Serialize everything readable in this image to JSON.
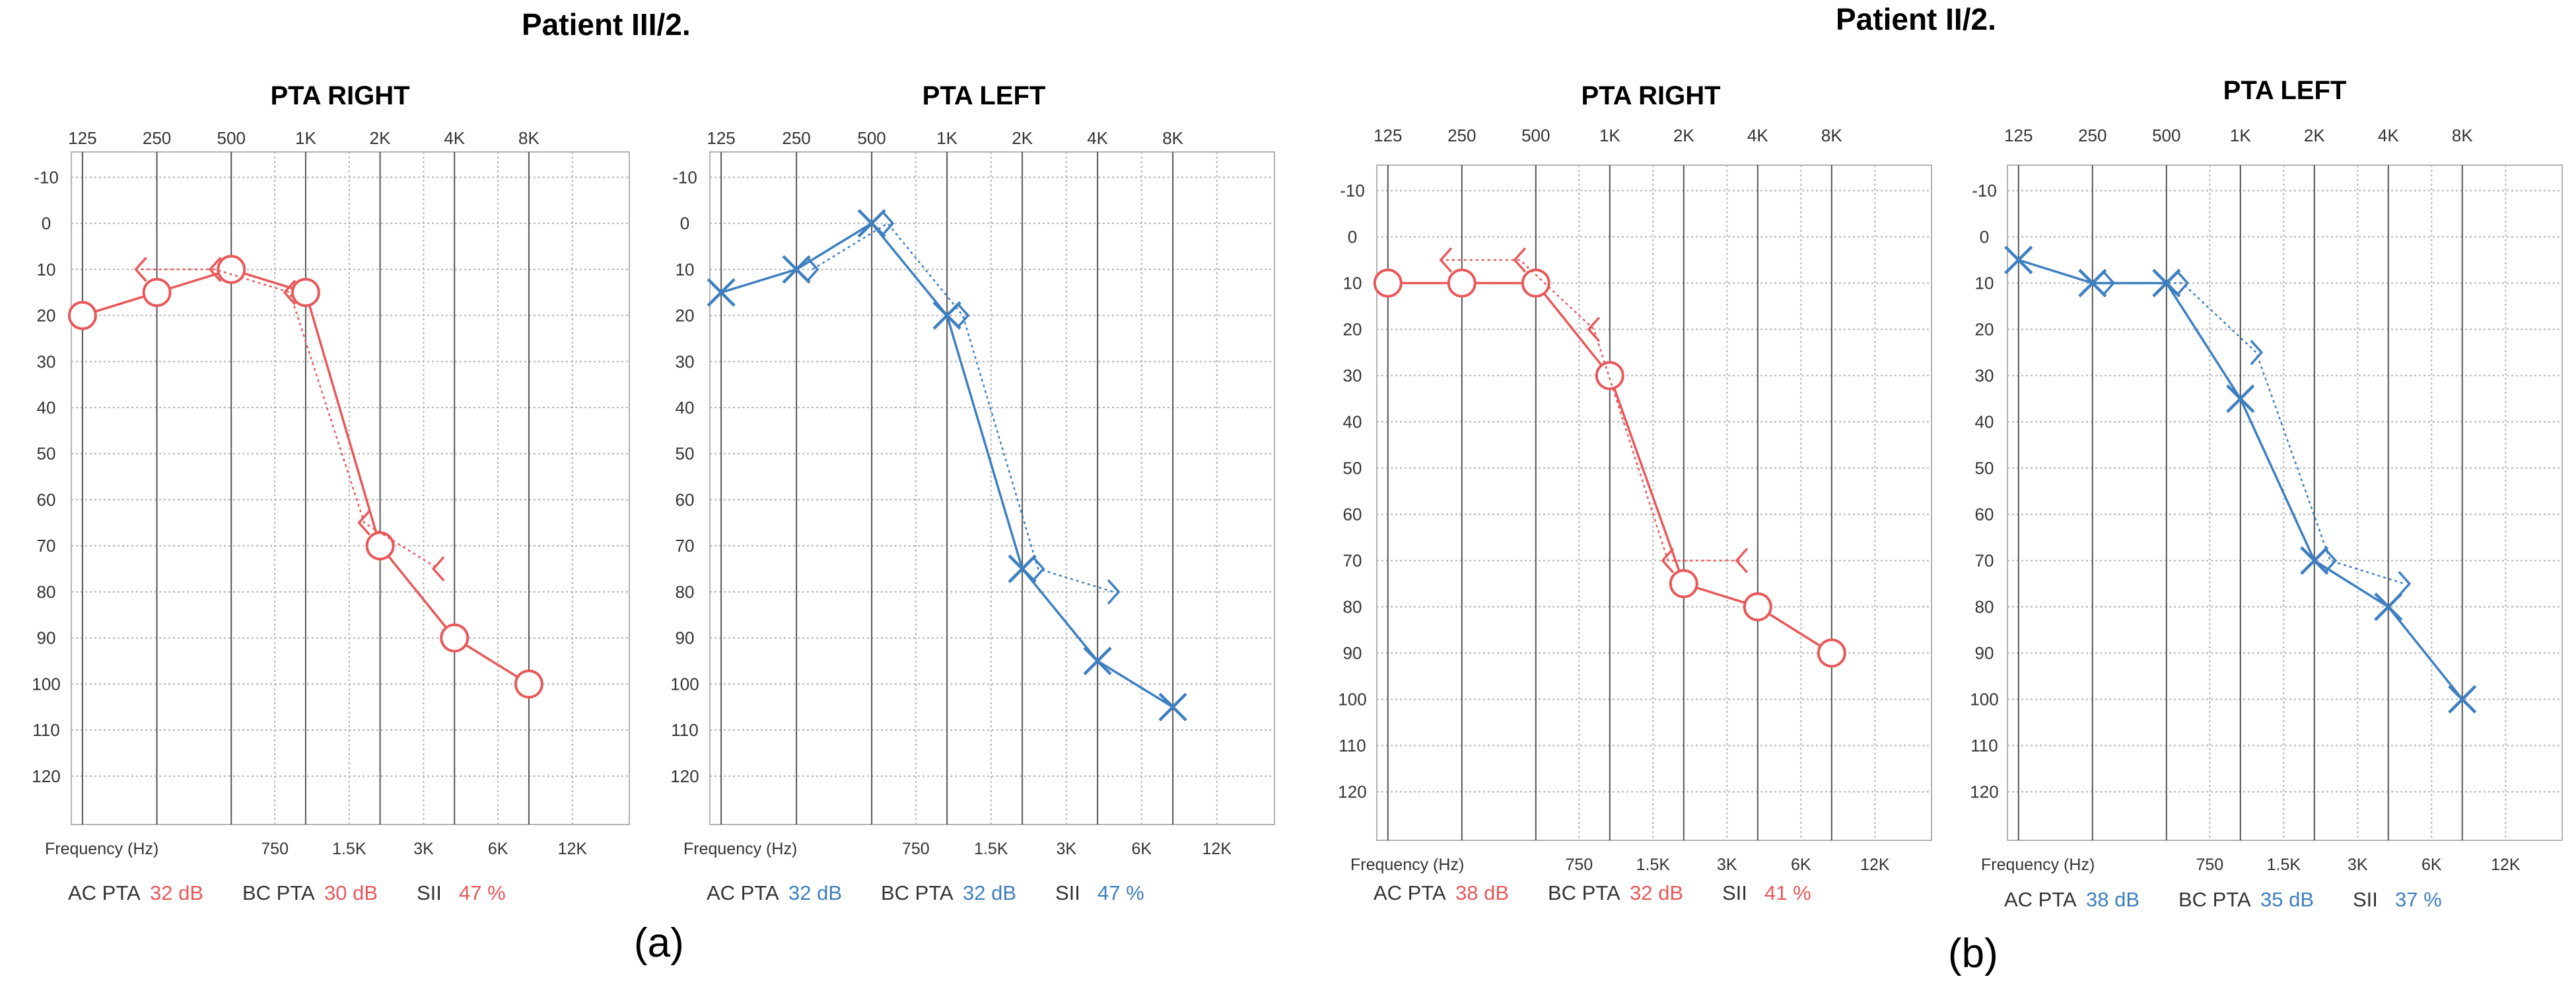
{
  "figure": {
    "patients": [
      {
        "title": "Patient III/2.",
        "panel_label": "(a)"
      },
      {
        "title": "Patient II/2.",
        "panel_label": "(b)"
      }
    ],
    "colors": {
      "right": "#e8585a",
      "left": "#3d7fc0",
      "grid": "#b3b3b3",
      "grid_major": "#555555"
    }
  },
  "chart_data": [
    {
      "type": "line",
      "title": "PTA RIGHT",
      "patient": "Patient III/2.",
      "ear": "right",
      "top_tick_labels": [
        "125",
        "250",
        "500",
        "1K",
        "2K",
        "4K",
        "8K"
      ],
      "bottom_tick_labels": [
        "750",
        "1.5K",
        "3K",
        "6K",
        "12K"
      ],
      "xlabel": "Frequency (Hz)",
      "y_tick_labels": [
        "-10",
        "0",
        "10",
        "20",
        "30",
        "40",
        "50",
        "60",
        "70",
        "80",
        "90",
        "100",
        "110",
        "120"
      ],
      "ylim": [
        -10,
        120
      ],
      "y_inverted": true,
      "series": [
        {
          "name": "AC",
          "marker": "circle",
          "line": "solid",
          "points": [
            {
              "x": 125,
              "y": 20
            },
            {
              "x": 250,
              "y": 15
            },
            {
              "x": 500,
              "y": 10
            },
            {
              "x": 1000,
              "y": 15
            },
            {
              "x": 2000,
              "y": 70
            },
            {
              "x": 4000,
              "y": 90
            },
            {
              "x": 8000,
              "y": 100
            }
          ]
        },
        {
          "name": "BC",
          "marker": "bracket-left",
          "line": "dotted",
          "points": [
            {
              "x": 250,
              "y": 10
            },
            {
              "x": 500,
              "y": 10
            },
            {
              "x": 1000,
              "y": 15
            },
            {
              "x": 2000,
              "y": 65
            },
            {
              "x": 4000,
              "y": 75
            }
          ]
        }
      ],
      "summary": [
        {
          "label": "AC PTA",
          "value": "32 dB"
        },
        {
          "label": "BC PTA",
          "value": "30 dB"
        },
        {
          "label": "SII",
          "value": "47 %"
        }
      ]
    },
    {
      "type": "line",
      "title": "PTA LEFT",
      "patient": "Patient III/2.",
      "ear": "left",
      "top_tick_labels": [
        "125",
        "250",
        "500",
        "1K",
        "2K",
        "4K",
        "8K"
      ],
      "bottom_tick_labels": [
        "750",
        "1.5K",
        "3K",
        "6K",
        "12K"
      ],
      "xlabel": "Frequency (Hz)",
      "y_tick_labels": [
        "-10",
        "0",
        "10",
        "20",
        "30",
        "40",
        "50",
        "60",
        "70",
        "80",
        "90",
        "100",
        "110",
        "120"
      ],
      "ylim": [
        -10,
        120
      ],
      "y_inverted": true,
      "series": [
        {
          "name": "AC",
          "marker": "cross",
          "line": "solid",
          "points": [
            {
              "x": 125,
              "y": 15
            },
            {
              "x": 250,
              "y": 10
            },
            {
              "x": 500,
              "y": 0
            },
            {
              "x": 1000,
              "y": 20
            },
            {
              "x": 2000,
              "y": 75
            },
            {
              "x": 4000,
              "y": 95
            },
            {
              "x": 8000,
              "y": 105
            }
          ]
        },
        {
          "name": "BC",
          "marker": "bracket-right",
          "line": "dotted",
          "points": [
            {
              "x": 250,
              "y": 10
            },
            {
              "x": 500,
              "y": 0
            },
            {
              "x": 1000,
              "y": 20
            },
            {
              "x": 2000,
              "y": 75
            },
            {
              "x": 4000,
              "y": 80
            }
          ]
        }
      ],
      "summary": [
        {
          "label": "AC PTA",
          "value": "32 dB"
        },
        {
          "label": "BC PTA",
          "value": "32 dB"
        },
        {
          "label": "SII",
          "value": "47 %"
        }
      ]
    },
    {
      "type": "line",
      "title": "PTA RIGHT",
      "patient": "Patient II/2.",
      "ear": "right",
      "top_tick_labels": [
        "125",
        "250",
        "500",
        "1K",
        "2K",
        "4K",
        "8K"
      ],
      "bottom_tick_labels": [
        "750",
        "1.5K",
        "3K",
        "6K",
        "12K"
      ],
      "xlabel": "Frequency (Hz)",
      "y_tick_labels": [
        "-10",
        "0",
        "10",
        "20",
        "30",
        "40",
        "50",
        "60",
        "70",
        "80",
        "90",
        "100",
        "110",
        "120"
      ],
      "ylim": [
        -10,
        120
      ],
      "y_inverted": true,
      "series": [
        {
          "name": "AC",
          "marker": "circle",
          "line": "solid",
          "points": [
            {
              "x": 125,
              "y": 10
            },
            {
              "x": 250,
              "y": 10
            },
            {
              "x": 500,
              "y": 10
            },
            {
              "x": 1000,
              "y": 30
            },
            {
              "x": 2000,
              "y": 75
            },
            {
              "x": 4000,
              "y": 80
            },
            {
              "x": 8000,
              "y": 90
            }
          ]
        },
        {
          "name": "BC",
          "marker": "bracket-left",
          "line": "dotted",
          "points": [
            {
              "x": 250,
              "y": 5
            },
            {
              "x": 500,
              "y": 5
            },
            {
              "x": 1000,
              "y": 20
            },
            {
              "x": 2000,
              "y": 70
            },
            {
              "x": 4000,
              "y": 70
            }
          ]
        }
      ],
      "summary": [
        {
          "label": "AC PTA",
          "value": "38 dB"
        },
        {
          "label": "BC PTA",
          "value": "32 dB"
        },
        {
          "label": "SII",
          "value": "41 %"
        }
      ]
    },
    {
      "type": "line",
      "title": "PTA LEFT",
      "patient": "Patient II/2.",
      "ear": "left",
      "top_tick_labels": [
        "125",
        "250",
        "500",
        "1K",
        "2K",
        "4K",
        "8K"
      ],
      "bottom_tick_labels": [
        "750",
        "1.5K",
        "3K",
        "6K",
        "12K"
      ],
      "xlabel": "Frequency (Hz)",
      "y_tick_labels": [
        "-10",
        "0",
        "10",
        "20",
        "30",
        "40",
        "50",
        "60",
        "70",
        "80",
        "90",
        "100",
        "110",
        "120"
      ],
      "ylim": [
        -10,
        120
      ],
      "y_inverted": true,
      "series": [
        {
          "name": "AC",
          "marker": "cross",
          "line": "solid",
          "points": [
            {
              "x": 125,
              "y": 5
            },
            {
              "x": 250,
              "y": 10
            },
            {
              "x": 500,
              "y": 10
            },
            {
              "x": 1000,
              "y": 35
            },
            {
              "x": 2000,
              "y": 70
            },
            {
              "x": 4000,
              "y": 80
            },
            {
              "x": 8000,
              "y": 100
            }
          ]
        },
        {
          "name": "BC",
          "marker": "bracket-right",
          "line": "dotted",
          "points": [
            {
              "x": 250,
              "y": 10
            },
            {
              "x": 500,
              "y": 10
            },
            {
              "x": 1000,
              "y": 25
            },
            {
              "x": 2000,
              "y": 70
            },
            {
              "x": 4000,
              "y": 75
            }
          ]
        }
      ],
      "summary": [
        {
          "label": "AC PTA",
          "value": "38 dB"
        },
        {
          "label": "BC PTA",
          "value": "35 dB"
        },
        {
          "label": "SII",
          "value": "37 %"
        }
      ]
    }
  ]
}
